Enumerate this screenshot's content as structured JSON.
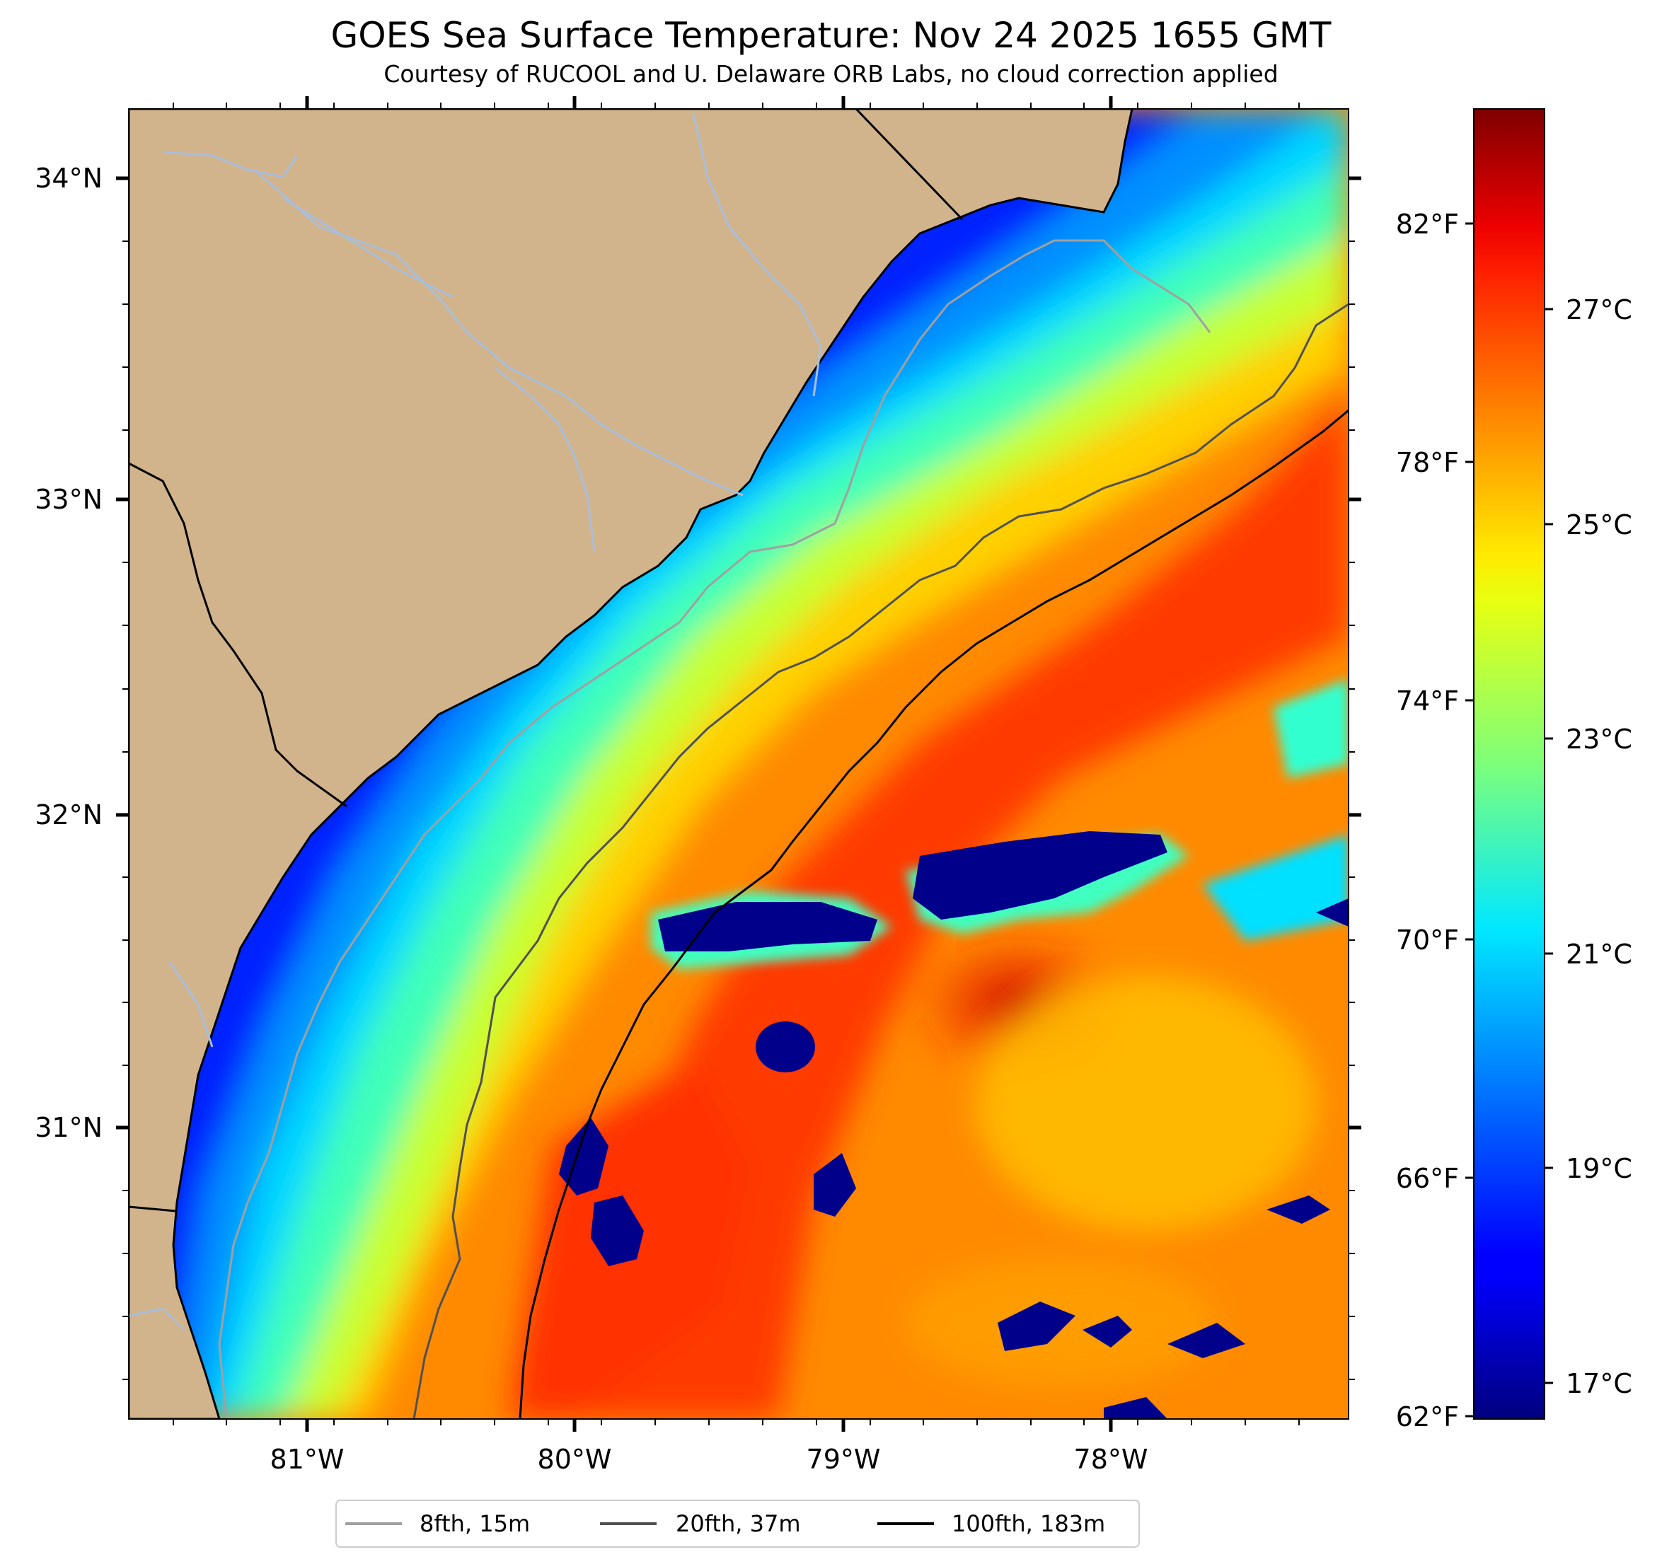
{
  "title": "GOES Sea Surface Temperature: Nov 24 2025 1655 GMT",
  "subtitle": "Courtesy of RUCOOL and U. Delaware ORB Labs, no cloud correction applied",
  "map": {
    "lon_labels": [
      "81°W",
      "80°W",
      "79°W",
      "78°W"
    ],
    "lat_labels": [
      "34°N",
      "33°N",
      "32°N",
      "31°N"
    ],
    "colors": {
      "land": "#d2b48c",
      "water_lines": "#a8bedc",
      "coast": "#000000"
    }
  },
  "colorbar": {
    "colormap": "jet",
    "fahrenheit_labels": [
      "82°F",
      "78°F",
      "74°F",
      "70°F",
      "66°F",
      "62°F"
    ],
    "celsius_labels": [
      "27°C",
      "25°C",
      "23°C",
      "21°C",
      "19°C",
      "17°C"
    ]
  },
  "legend": {
    "items": [
      {
        "label": "8fth, 15m",
        "color": "#a0a0a0"
      },
      {
        "label": "20fth, 37m",
        "color": "#505050"
      },
      {
        "label": "100fth, 183m",
        "color": "#000000"
      }
    ]
  }
}
